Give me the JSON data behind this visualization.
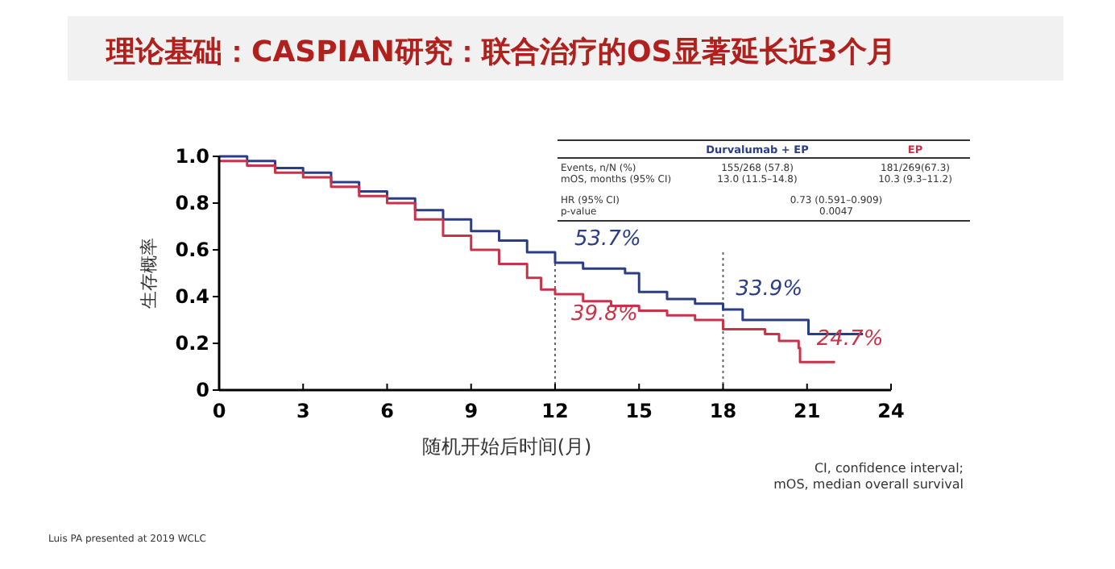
{
  "chart_data": {
    "type": "step",
    "title": "理论基础：CASPIAN研究：联合治疗的OS显著延长近3个月",
    "xlabel": "随机开始后时间(月)",
    "ylabel": "生存概率",
    "xlim": [
      0,
      24
    ],
    "xticks": [
      0,
      3,
      6,
      9,
      12,
      15,
      18,
      21,
      24
    ],
    "ylim": [
      0,
      1
    ],
    "yticks": [
      {
        "value": 0,
        "label": "0"
      },
      {
        "value": 0.2,
        "label": "0.2"
      },
      {
        "value": 0.4,
        "label": "0.4"
      },
      {
        "value": 0.6,
        "label": "0.6"
      },
      {
        "value": 0.8,
        "label": "0.8"
      },
      {
        "value": 1,
        "label": "1.0"
      }
    ],
    "legend": "top right",
    "grid": false,
    "series": [
      {
        "name": "Durvalumab + EP",
        "color": "#2b3d87",
        "x": [
          0,
          1,
          2,
          3,
          4,
          5,
          6,
          7,
          8,
          9,
          10,
          11,
          12,
          13,
          14.5,
          15,
          16,
          17,
          18,
          18.7,
          21,
          21.05,
          23
        ],
        "values": [
          1,
          0.98,
          0.95,
          0.93,
          0.89,
          0.85,
          0.82,
          0.77,
          0.73,
          0.68,
          0.64,
          0.59,
          0.545,
          0.52,
          0.5,
          0.42,
          0.39,
          0.37,
          0.345,
          0.3,
          0.3,
          0.24,
          0.24
        ]
      },
      {
        "name": "EP",
        "color": "#c8334a",
        "x": [
          0,
          1,
          2,
          3,
          4,
          5,
          6,
          7,
          8,
          9,
          10,
          11,
          11.5,
          12,
          13,
          14,
          15,
          16,
          17,
          18,
          19.5,
          20,
          20.7,
          20.75,
          22
        ],
        "values": [
          0.98,
          0.96,
          0.93,
          0.91,
          0.87,
          0.83,
          0.8,
          0.73,
          0.66,
          0.6,
          0.54,
          0.48,
          0.43,
          0.41,
          0.38,
          0.36,
          0.34,
          0.32,
          0.3,
          0.26,
          0.24,
          0.21,
          0.18,
          0.12,
          0.12
        ]
      }
    ],
    "ref_lines": [
      {
        "axis": "x",
        "value": 12,
        "line_style": "dotted"
      },
      {
        "axis": "x",
        "value": 18,
        "line_style": "dotted"
      }
    ],
    "annotations": [
      {
        "text": "53.7%",
        "x": 12,
        "y": 0.537
      },
      {
        "text": "39.8%",
        "x": 12,
        "y": 0.398
      },
      {
        "text": "33.9%",
        "x": 18,
        "y": 0.339
      },
      {
        "text": "24.7%",
        "x": 21,
        "y": 0.247
      },
      "Events, n/N (%)",
      "155/268 (57.8)",
      "181/269(67.3)",
      "mOS, months (95% CI)",
      "13.0 (11.5–14.8)",
      "10.3 (9.3–11.2)",
      "HR (95% CI)",
      "0.73 (0.591–0.909)",
      "p-value",
      "0.0047",
      "CI, confidence interval;",
      "mOS, median overall survival",
      "Luis PA presented at 2019 WCLC"
    ]
  }
}
